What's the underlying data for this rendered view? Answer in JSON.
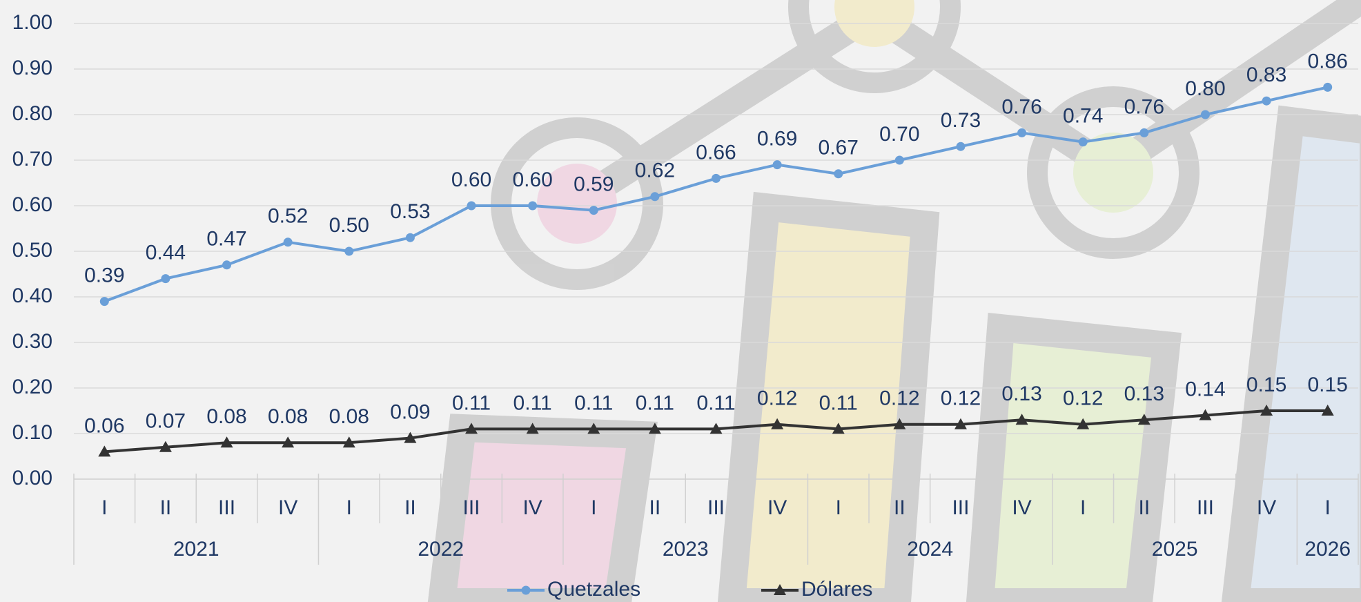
{
  "chart_data": {
    "type": "line",
    "categories": [
      "I",
      "II",
      "III",
      "IV",
      "I",
      "II",
      "III",
      "IV",
      "I",
      "II",
      "III",
      "IV",
      "I",
      "II",
      "III",
      "IV",
      "I",
      "II",
      "III",
      "IV",
      "I"
    ],
    "years": [
      "2021",
      null,
      null,
      null,
      "2022",
      null,
      null,
      null,
      "2023",
      null,
      null,
      null,
      "2024",
      null,
      null,
      null,
      "2025",
      null,
      null,
      null,
      "2026"
    ],
    "series": [
      {
        "name": "Quetzales",
        "color": "#6a9fd8",
        "marker": "circle",
        "values": [
          0.39,
          0.44,
          0.47,
          0.52,
          0.5,
          0.53,
          0.6,
          0.6,
          0.59,
          0.62,
          0.66,
          0.69,
          0.67,
          0.7,
          0.73,
          0.76,
          0.74,
          0.76,
          0.8,
          0.83,
          0.86
        ],
        "value_labels": [
          "0.39",
          "0.44",
          "0.47",
          "0.52",
          "0.50",
          "0.53",
          "0.60",
          "0.60",
          "0.59",
          "0.62",
          "0.66",
          "0.69",
          "0.67",
          "0.70",
          "0.73",
          "0.76",
          "0.74",
          "0.76",
          "0.80",
          "0.83",
          "0.86"
        ]
      },
      {
        "name": "Dólares",
        "color": "#333333",
        "marker": "triangle",
        "values": [
          0.06,
          0.07,
          0.08,
          0.08,
          0.08,
          0.09,
          0.11,
          0.11,
          0.11,
          0.11,
          0.11,
          0.12,
          0.11,
          0.12,
          0.12,
          0.13,
          0.12,
          0.13,
          0.14,
          0.15,
          0.15
        ]
      }
    ],
    "ylim": [
      0,
      1
    ],
    "yticks": [
      {
        "value": 0,
        "label": "0.00"
      },
      {
        "value": 0.1,
        "label": "0.10"
      },
      {
        "value": 0.2,
        "label": "0.20"
      },
      {
        "value": 0.3,
        "label": "0.30"
      },
      {
        "value": 0.4,
        "label": "0.40"
      },
      {
        "value": 0.5,
        "label": "0.50"
      },
      {
        "value": 0.6,
        "label": "0.60"
      },
      {
        "value": 0.7,
        "label": "0.70"
      },
      {
        "value": 0.8,
        "label": "0.80"
      },
      {
        "value": 0.9,
        "label": "0.90"
      },
      {
        "value": 1,
        "label": "1.00"
      }
    ],
    "grid": true,
    "legend": "bottom"
  }
}
